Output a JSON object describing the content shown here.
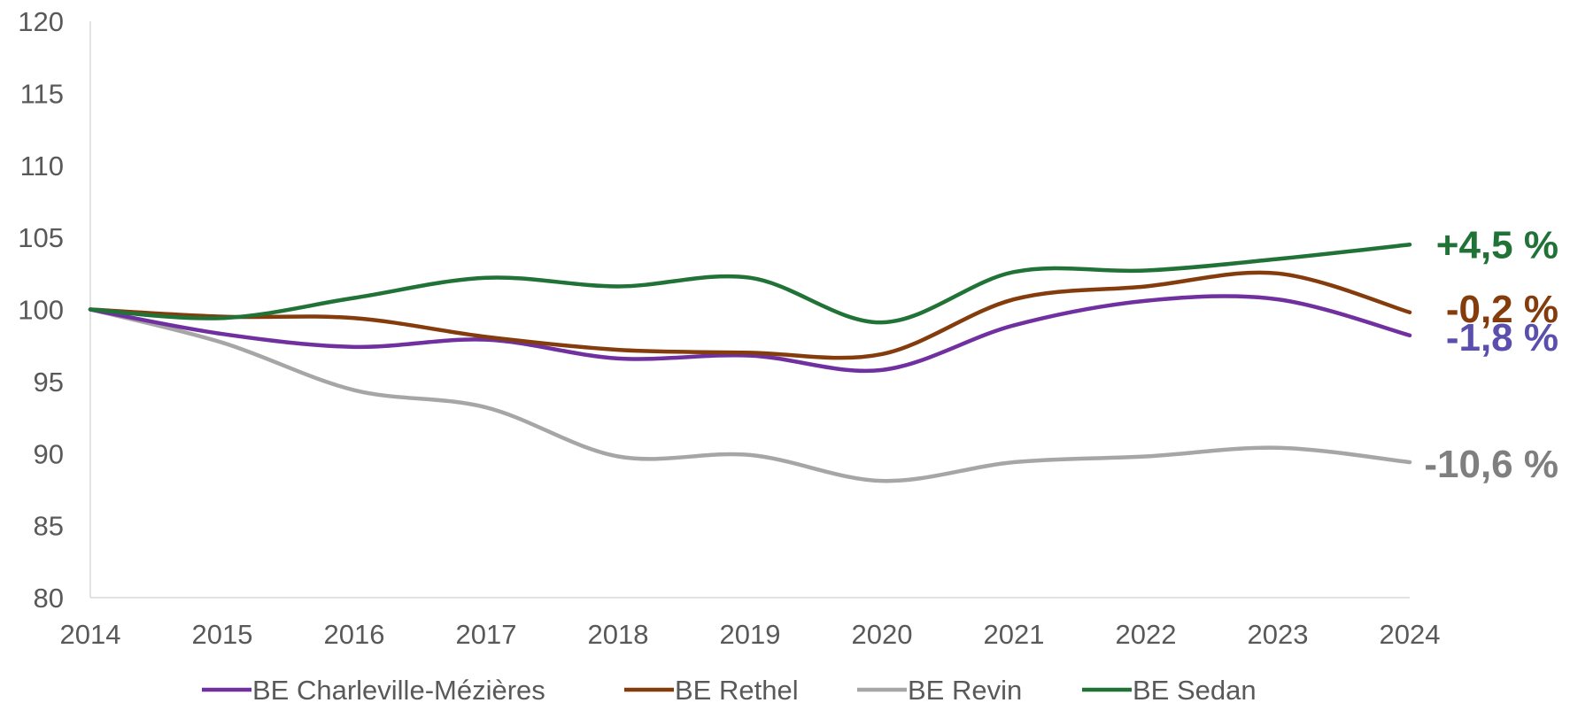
{
  "chart_data": {
    "type": "line",
    "title": "",
    "xlabel": "",
    "ylabel": "",
    "x": [
      "2014",
      "2015",
      "2016",
      "2017",
      "2018",
      "2019",
      "2020",
      "2021",
      "2022",
      "2023",
      "2024"
    ],
    "ylim": [
      80,
      120
    ],
    "yticks": [
      "80",
      "85",
      "90",
      "95",
      "100",
      "105",
      "110",
      "115",
      "120"
    ],
    "grid": false,
    "smooth": true,
    "legend_position": "bottom",
    "series": [
      {
        "name": "BE Charleville-Mézières",
        "color": "#7030A0",
        "values": [
          100,
          98.3,
          97.4,
          97.9,
          96.6,
          96.8,
          95.8,
          98.9,
          100.6,
          100.7,
          98.2
        ],
        "end_label": "-1,8 %",
        "end_label_color": "#5B4FAE"
      },
      {
        "name": "BE Rethel",
        "color": "#843C0C",
        "values": [
          100,
          99.5,
          99.4,
          98.1,
          97.2,
          97.0,
          96.9,
          100.7,
          101.6,
          102.5,
          99.8
        ],
        "end_label": "-0,2 %",
        "end_label_color": "#843C0C"
      },
      {
        "name": "BE Revin",
        "color": "#A6A6A6",
        "values": [
          100,
          97.7,
          94.4,
          93.2,
          89.8,
          89.9,
          88.1,
          89.4,
          89.8,
          90.4,
          89.4
        ],
        "end_label": "-10,6 %",
        "end_label_color": "#7F7F7F"
      },
      {
        "name": "BE Sedan",
        "color": "#217237",
        "values": [
          100,
          99.4,
          100.8,
          102.2,
          101.6,
          102.2,
          99.1,
          102.6,
          102.7,
          103.5,
          104.5
        ],
        "end_label": "+4,5 %",
        "end_label_color": "#217237"
      }
    ]
  }
}
